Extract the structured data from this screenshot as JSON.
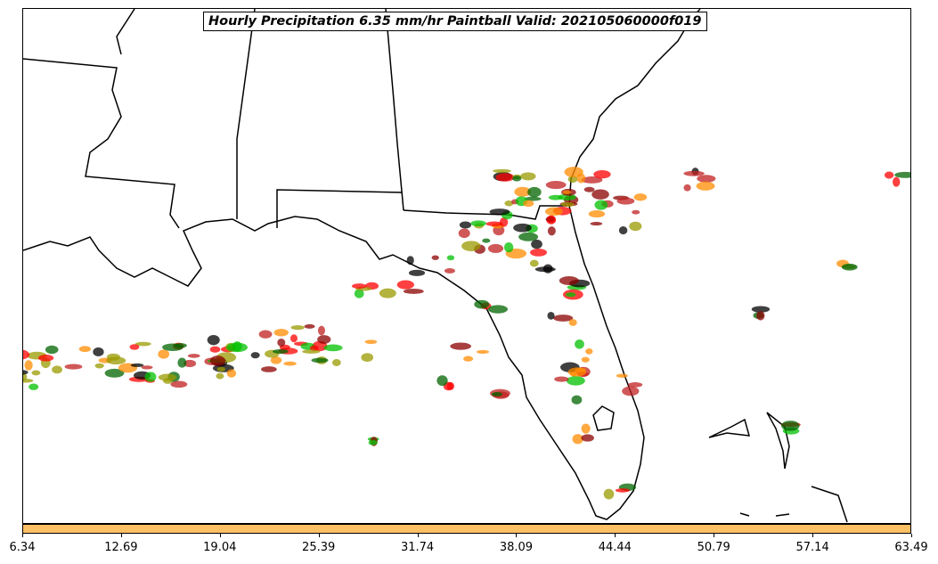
{
  "title": "Hourly Precipitation 6.35 mm/hr Paintball Valid: 202105060000f019",
  "colorbar": {
    "color": "#fec065",
    "ticks": [
      "6.34",
      "12.69",
      "19.04",
      "25.39",
      "31.74",
      "38.09",
      "44.44",
      "50.79",
      "57.14",
      "63.49"
    ]
  },
  "member_colors": [
    "#ff0000",
    "#ff8c00",
    "#8b0000",
    "#9a9a00",
    "#00c000",
    "#006400",
    "#000000",
    "#c02020"
  ]
}
